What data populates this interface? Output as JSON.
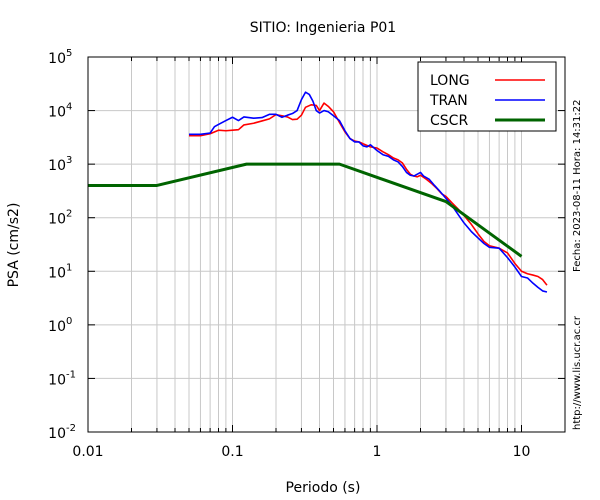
{
  "chart_data": {
    "type": "line",
    "title": "SITIO: Ingenieria P01",
    "xlabel": "Periodo (s)",
    "ylabel": "PSA (cm/s2)",
    "x_scale": "log",
    "y_scale": "log",
    "xlim": [
      0.01,
      20
    ],
    "ylim": [
      0.01,
      100000
    ],
    "grid": true,
    "legend_position": "top-right",
    "x_ticks": [
      {
        "value": 0.01,
        "label": "0.01"
      },
      {
        "value": 0.1,
        "label": "0.1"
      },
      {
        "value": 1,
        "label": "1"
      },
      {
        "value": 10,
        "label": "10"
      }
    ],
    "y_ticks": [
      {
        "value": 0.01,
        "base": "10",
        "exp": "-2"
      },
      {
        "value": 0.1,
        "base": "10",
        "exp": "-1"
      },
      {
        "value": 1,
        "base": "10",
        "exp": "0"
      },
      {
        "value": 10,
        "base": "10",
        "exp": "1"
      },
      {
        "value": 100,
        "base": "10",
        "exp": "2"
      },
      {
        "value": 1000,
        "base": "10",
        "exp": "3"
      },
      {
        "value": 10000,
        "base": "10",
        "exp": "4"
      },
      {
        "value": 100000,
        "base": "10",
        "exp": "5"
      }
    ],
    "series": [
      {
        "name": "LONG",
        "color": "#ff0000",
        "points": [
          [
            0.05,
            3400
          ],
          [
            0.06,
            3400
          ],
          [
            0.07,
            3700
          ],
          [
            0.08,
            4300
          ],
          [
            0.09,
            4200
          ],
          [
            0.1,
            4300
          ],
          [
            0.11,
            4400
          ],
          [
            0.12,
            5400
          ],
          [
            0.14,
            5800
          ],
          [
            0.16,
            6400
          ],
          [
            0.18,
            7000
          ],
          [
            0.2,
            8400
          ],
          [
            0.22,
            8000
          ],
          [
            0.24,
            7600
          ],
          [
            0.26,
            6800
          ],
          [
            0.28,
            6900
          ],
          [
            0.3,
            8200
          ],
          [
            0.32,
            11500
          ],
          [
            0.35,
            12800
          ],
          [
            0.38,
            12500
          ],
          [
            0.4,
            10000
          ],
          [
            0.43,
            13800
          ],
          [
            0.46,
            12000
          ],
          [
            0.5,
            9500
          ],
          [
            0.55,
            6000
          ],
          [
            0.6,
            4000
          ],
          [
            0.65,
            3000
          ],
          [
            0.7,
            2700
          ],
          [
            0.75,
            2600
          ],
          [
            0.8,
            2400
          ],
          [
            0.9,
            2100
          ],
          [
            1.0,
            2000
          ],
          [
            1.1,
            1700
          ],
          [
            1.2,
            1500
          ],
          [
            1.3,
            1300
          ],
          [
            1.4,
            1200
          ],
          [
            1.5,
            1050
          ],
          [
            1.6,
            800
          ],
          [
            1.7,
            650
          ],
          [
            1.8,
            600
          ],
          [
            1.9,
            580
          ],
          [
            2.0,
            620
          ],
          [
            2.2,
            520
          ],
          [
            2.4,
            430
          ],
          [
            2.6,
            350
          ],
          [
            2.8,
            280
          ],
          [
            3.0,
            250
          ],
          [
            3.3,
            190
          ],
          [
            3.6,
            150
          ],
          [
            4.0,
            110
          ],
          [
            4.5,
            75
          ],
          [
            5.0,
            50
          ],
          [
            5.5,
            36
          ],
          [
            6.0,
            30
          ],
          [
            7.0,
            27
          ],
          [
            8.0,
            22
          ],
          [
            9.0,
            14
          ],
          [
            10,
            10
          ],
          [
            11,
            9
          ],
          [
            12,
            8.5
          ],
          [
            13,
            8
          ],
          [
            14,
            7
          ],
          [
            15,
            5.5
          ]
        ]
      },
      {
        "name": "TRAN",
        "color": "#0000ff",
        "points": [
          [
            0.05,
            3600
          ],
          [
            0.06,
            3600
          ],
          [
            0.07,
            3800
          ],
          [
            0.075,
            5000
          ],
          [
            0.08,
            5500
          ],
          [
            0.09,
            6500
          ],
          [
            0.1,
            7500
          ],
          [
            0.11,
            6500
          ],
          [
            0.12,
            7600
          ],
          [
            0.14,
            7200
          ],
          [
            0.16,
            7400
          ],
          [
            0.18,
            8500
          ],
          [
            0.2,
            8500
          ],
          [
            0.22,
            7500
          ],
          [
            0.24,
            8200
          ],
          [
            0.26,
            8800
          ],
          [
            0.28,
            10000
          ],
          [
            0.3,
            16000
          ],
          [
            0.32,
            22000
          ],
          [
            0.34,
            20000
          ],
          [
            0.36,
            15000
          ],
          [
            0.38,
            10000
          ],
          [
            0.4,
            9000
          ],
          [
            0.43,
            10000
          ],
          [
            0.46,
            9500
          ],
          [
            0.5,
            8000
          ],
          [
            0.55,
            6500
          ],
          [
            0.6,
            4200
          ],
          [
            0.65,
            3000
          ],
          [
            0.7,
            2600
          ],
          [
            0.75,
            2600
          ],
          [
            0.8,
            2200
          ],
          [
            0.85,
            2100
          ],
          [
            0.9,
            2300
          ],
          [
            1.0,
            1800
          ],
          [
            1.1,
            1500
          ],
          [
            1.2,
            1400
          ],
          [
            1.3,
            1200
          ],
          [
            1.4,
            1100
          ],
          [
            1.5,
            900
          ],
          [
            1.6,
            700
          ],
          [
            1.7,
            620
          ],
          [
            1.8,
            600
          ],
          [
            1.9,
            650
          ],
          [
            2.0,
            700
          ],
          [
            2.1,
            600
          ],
          [
            2.3,
            520
          ],
          [
            2.5,
            400
          ],
          [
            2.7,
            320
          ],
          [
            3.0,
            230
          ],
          [
            3.3,
            170
          ],
          [
            3.6,
            120
          ],
          [
            4.0,
            80
          ],
          [
            4.5,
            55
          ],
          [
            5.0,
            42
          ],
          [
            5.5,
            33
          ],
          [
            6.0,
            28
          ],
          [
            7.0,
            27
          ],
          [
            8.0,
            18
          ],
          [
            9.0,
            12
          ],
          [
            10,
            8
          ],
          [
            11,
            7.5
          ],
          [
            12,
            6
          ],
          [
            13,
            5
          ],
          [
            14,
            4.3
          ],
          [
            15,
            4.1
          ]
        ]
      },
      {
        "name": "CSCR",
        "color": "#006400",
        "points": [
          [
            0.01,
            400
          ],
          [
            0.03,
            400
          ],
          [
            0.125,
            1000
          ],
          [
            0.55,
            1000
          ],
          [
            3.0,
            200
          ],
          [
            10,
            19
          ]
        ]
      }
    ]
  },
  "side_text": {
    "fecha": "Fecha: 2023-08-11 Hora: 14:31:22",
    "url": "http://www.lis.ucr.ac.cr"
  }
}
